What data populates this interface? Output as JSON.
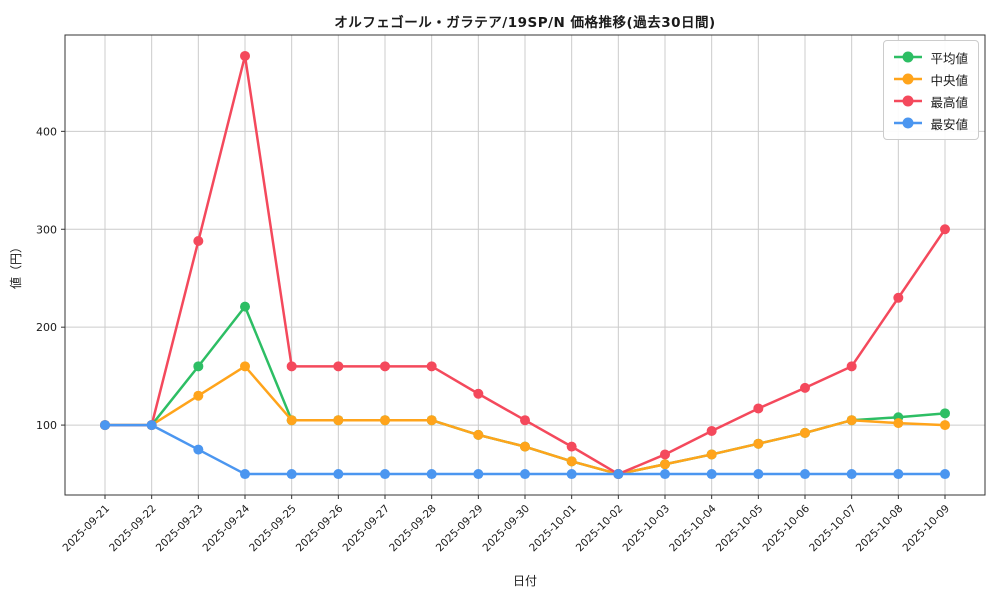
{
  "figure": {
    "title": "オルフェゴール・ガラテア/19SP/N 価格推移(過去30日間)",
    "xlabel": "日付",
    "ylabel": "値（円）"
  },
  "colors": {
    "average": "#2dbe64",
    "median": "#ffa41b",
    "max": "#f4495c",
    "min": "#4b96f0",
    "grid": "#cccccc",
    "axis": "#333333",
    "text": "#1a1a1a",
    "legend_border": "#cccccc"
  },
  "chart_data": {
    "type": "line",
    "title": "オルフェゴール・ガラテア/19SP/N 価格推移(過去30日間)",
    "xlabel": "日付",
    "ylabel": "値（円）",
    "grid": true,
    "legend_position": "upper right",
    "ylim": [
      28.6,
      498.4
    ],
    "yticks": [
      100,
      200,
      300,
      400
    ],
    "x": [
      "2025-09-21",
      "2025-09-22",
      "2025-09-23",
      "2025-09-24",
      "2025-09-25",
      "2025-09-26",
      "2025-09-27",
      "2025-09-28",
      "2025-09-29",
      "2025-09-30",
      "2025-10-01",
      "2025-10-02",
      "2025-10-03",
      "2025-10-04",
      "2025-10-05",
      "2025-10-06",
      "2025-10-07",
      "2025-10-08",
      "2025-10-09"
    ],
    "series": [
      {
        "key": "average",
        "name": "平均値",
        "color": "#2dbe64",
        "values": [
          100,
          100,
          160,
          221,
          105,
          105,
          105,
          105,
          90,
          78,
          63,
          50,
          60,
          70,
          81,
          92,
          105,
          108,
          112
        ]
      },
      {
        "key": "median",
        "name": "中央値",
        "color": "#ffa41b",
        "values": [
          100,
          100,
          130,
          160,
          105,
          105,
          105,
          105,
          90,
          78,
          63,
          50,
          60,
          70,
          81,
          92,
          105,
          102,
          100
        ]
      },
      {
        "key": "max",
        "name": "最高値",
        "color": "#f4495c",
        "values": [
          100,
          100,
          288,
          477,
          160,
          160,
          160,
          160,
          132,
          105,
          78,
          50,
          70,
          94,
          117,
          138,
          160,
          230,
          300
        ]
      },
      {
        "key": "min",
        "name": "最安値",
        "color": "#4b96f0",
        "values": [
          100,
          100,
          75,
          50,
          50,
          50,
          50,
          50,
          50,
          50,
          50,
          50,
          50,
          50,
          50,
          50,
          50,
          50,
          50
        ]
      }
    ]
  }
}
